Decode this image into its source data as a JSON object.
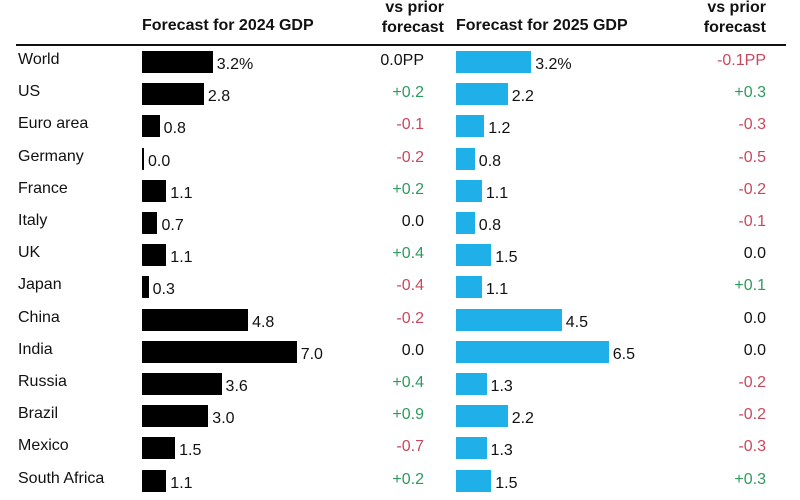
{
  "chart_data": {
    "type": "table",
    "columns": {
      "forecast_2024": "Forecast for 2024 GDP",
      "delta_2024": [
        "vs prior",
        "forecast"
      ],
      "forecast_2025": "Forecast for 2025 GDP",
      "delta_2025": [
        "vs prior",
        "forecast"
      ]
    },
    "units_2024_first": "%",
    "units_2025_first": "%",
    "delta_unit_first": "PP",
    "colors": {
      "bar_2024": "#000000",
      "bar_2025": "#1fb0ea",
      "positive": "#2e9a5e",
      "negative": "#c8485f"
    },
    "rows": [
      {
        "label": "World",
        "v2024": 3.2,
        "v2024_text": "3.2%",
        "d2024_text": "0.0PP",
        "d2024": 0.0,
        "v2025": 3.2,
        "v2025_text": "3.2%",
        "d2025_text": "-0.1PP",
        "d2025": -0.1
      },
      {
        "label": "US",
        "v2024": 2.8,
        "v2024_text": "2.8",
        "d2024_text": "+0.2",
        "d2024": 0.2,
        "v2025": 2.2,
        "v2025_text": "2.2",
        "d2025_text": "+0.3",
        "d2025": 0.3
      },
      {
        "label": "Euro area",
        "v2024": 0.8,
        "v2024_text": "0.8",
        "d2024_text": "-0.1",
        "d2024": -0.1,
        "v2025": 1.2,
        "v2025_text": "1.2",
        "d2025_text": "-0.3",
        "d2025": -0.3
      },
      {
        "label": "Germany",
        "v2024": 0.0,
        "v2024_text": "0.0",
        "d2024_text": "-0.2",
        "d2024": -0.2,
        "v2025": 0.8,
        "v2025_text": "0.8",
        "d2025_text": "-0.5",
        "d2025": -0.5
      },
      {
        "label": "France",
        "v2024": 1.1,
        "v2024_text": "1.1",
        "d2024_text": "+0.2",
        "d2024": 0.2,
        "v2025": 1.1,
        "v2025_text": "1.1",
        "d2025_text": "-0.2",
        "d2025": -0.2
      },
      {
        "label": "Italy",
        "v2024": 0.7,
        "v2024_text": "0.7",
        "d2024_text": "0.0",
        "d2024": 0.0,
        "v2025": 0.8,
        "v2025_text": "0.8",
        "d2025_text": "-0.1",
        "d2025": -0.1
      },
      {
        "label": "UK",
        "v2024": 1.1,
        "v2024_text": "1.1",
        "d2024_text": "+0.4",
        "d2024": 0.4,
        "v2025": 1.5,
        "v2025_text": "1.5",
        "d2025_text": "0.0",
        "d2025": 0.0
      },
      {
        "label": "Japan",
        "v2024": 0.3,
        "v2024_text": "0.3",
        "d2024_text": "-0.4",
        "d2024": -0.4,
        "v2025": 1.1,
        "v2025_text": "1.1",
        "d2025_text": "+0.1",
        "d2025": 0.1
      },
      {
        "label": "China",
        "v2024": 4.8,
        "v2024_text": "4.8",
        "d2024_text": "-0.2",
        "d2024": -0.2,
        "v2025": 4.5,
        "v2025_text": "4.5",
        "d2025_text": "0.0",
        "d2025": 0.0
      },
      {
        "label": "India",
        "v2024": 7.0,
        "v2024_text": "7.0",
        "d2024_text": "0.0",
        "d2024": 0.0,
        "v2025": 6.5,
        "v2025_text": "6.5",
        "d2025_text": "0.0",
        "d2025": 0.0
      },
      {
        "label": "Russia",
        "v2024": 3.6,
        "v2024_text": "3.6",
        "d2024_text": "+0.4",
        "d2024": 0.4,
        "v2025": 1.3,
        "v2025_text": "1.3",
        "d2025_text": "-0.2",
        "d2025": -0.2
      },
      {
        "label": "Brazil",
        "v2024": 3.0,
        "v2024_text": "3.0",
        "d2024_text": "+0.9",
        "d2024": 0.9,
        "v2025": 2.2,
        "v2025_text": "2.2",
        "d2025_text": "-0.2",
        "d2025": -0.2
      },
      {
        "label": "Mexico",
        "v2024": 1.5,
        "v2024_text": "1.5",
        "d2024_text": "-0.7",
        "d2024": -0.7,
        "v2025": 1.3,
        "v2025_text": "1.3",
        "d2025_text": "-0.3",
        "d2025": -0.3
      },
      {
        "label": "South Africa",
        "v2024": 1.1,
        "v2024_text": "1.1",
        "d2024_text": "+0.2",
        "d2024": 0.2,
        "v2025": 1.5,
        "v2025_text": "1.5",
        "d2025_text": "+0.3",
        "d2025": 0.3
      }
    ]
  }
}
